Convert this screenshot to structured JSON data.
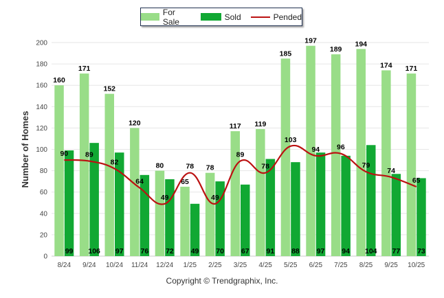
{
  "chart_data": {
    "type": "bar",
    "categories": [
      "8/24",
      "9/24",
      "10/24",
      "11/24",
      "12/24",
      "1/25",
      "2/25",
      "3/25",
      "4/25",
      "5/25",
      "6/25",
      "7/25",
      "8/25",
      "9/25",
      "10/25"
    ],
    "series": [
      {
        "name": "For Sale",
        "kind": "bar",
        "color": "#99dd88",
        "values": [
          160,
          171,
          152,
          120,
          80,
          65,
          78,
          117,
          119,
          185,
          197,
          189,
          194,
          174,
          171
        ]
      },
      {
        "name": "Sold",
        "kind": "bar",
        "color": "#11a833",
        "values": [
          99,
          106,
          97,
          76,
          72,
          49,
          70,
          67,
          91,
          88,
          97,
          94,
          104,
          77,
          73
        ]
      },
      {
        "name": "Pended",
        "kind": "line",
        "color": "#bb1111",
        "values": [
          90,
          89,
          82,
          64,
          49,
          78,
          49,
          89,
          78,
          103,
          94,
          96,
          79,
          74,
          65
        ]
      }
    ],
    "title": "",
    "xlabel": "",
    "ylabel": "Number of Homes",
    "ylim": [
      0,
      200
    ],
    "yticks": [
      0,
      20,
      40,
      60,
      80,
      100,
      120,
      140,
      160,
      180,
      200
    ],
    "legend_position": "top-center"
  },
  "legend": [
    {
      "label": "For Sale",
      "color": "#99dd88",
      "type": "bar"
    },
    {
      "label": "Sold",
      "color": "#11a833",
      "type": "bar"
    },
    {
      "label": "Pended",
      "color": "#bb1111",
      "type": "line"
    }
  ],
  "copyright": "Copyright © Trendgraphix, Inc."
}
